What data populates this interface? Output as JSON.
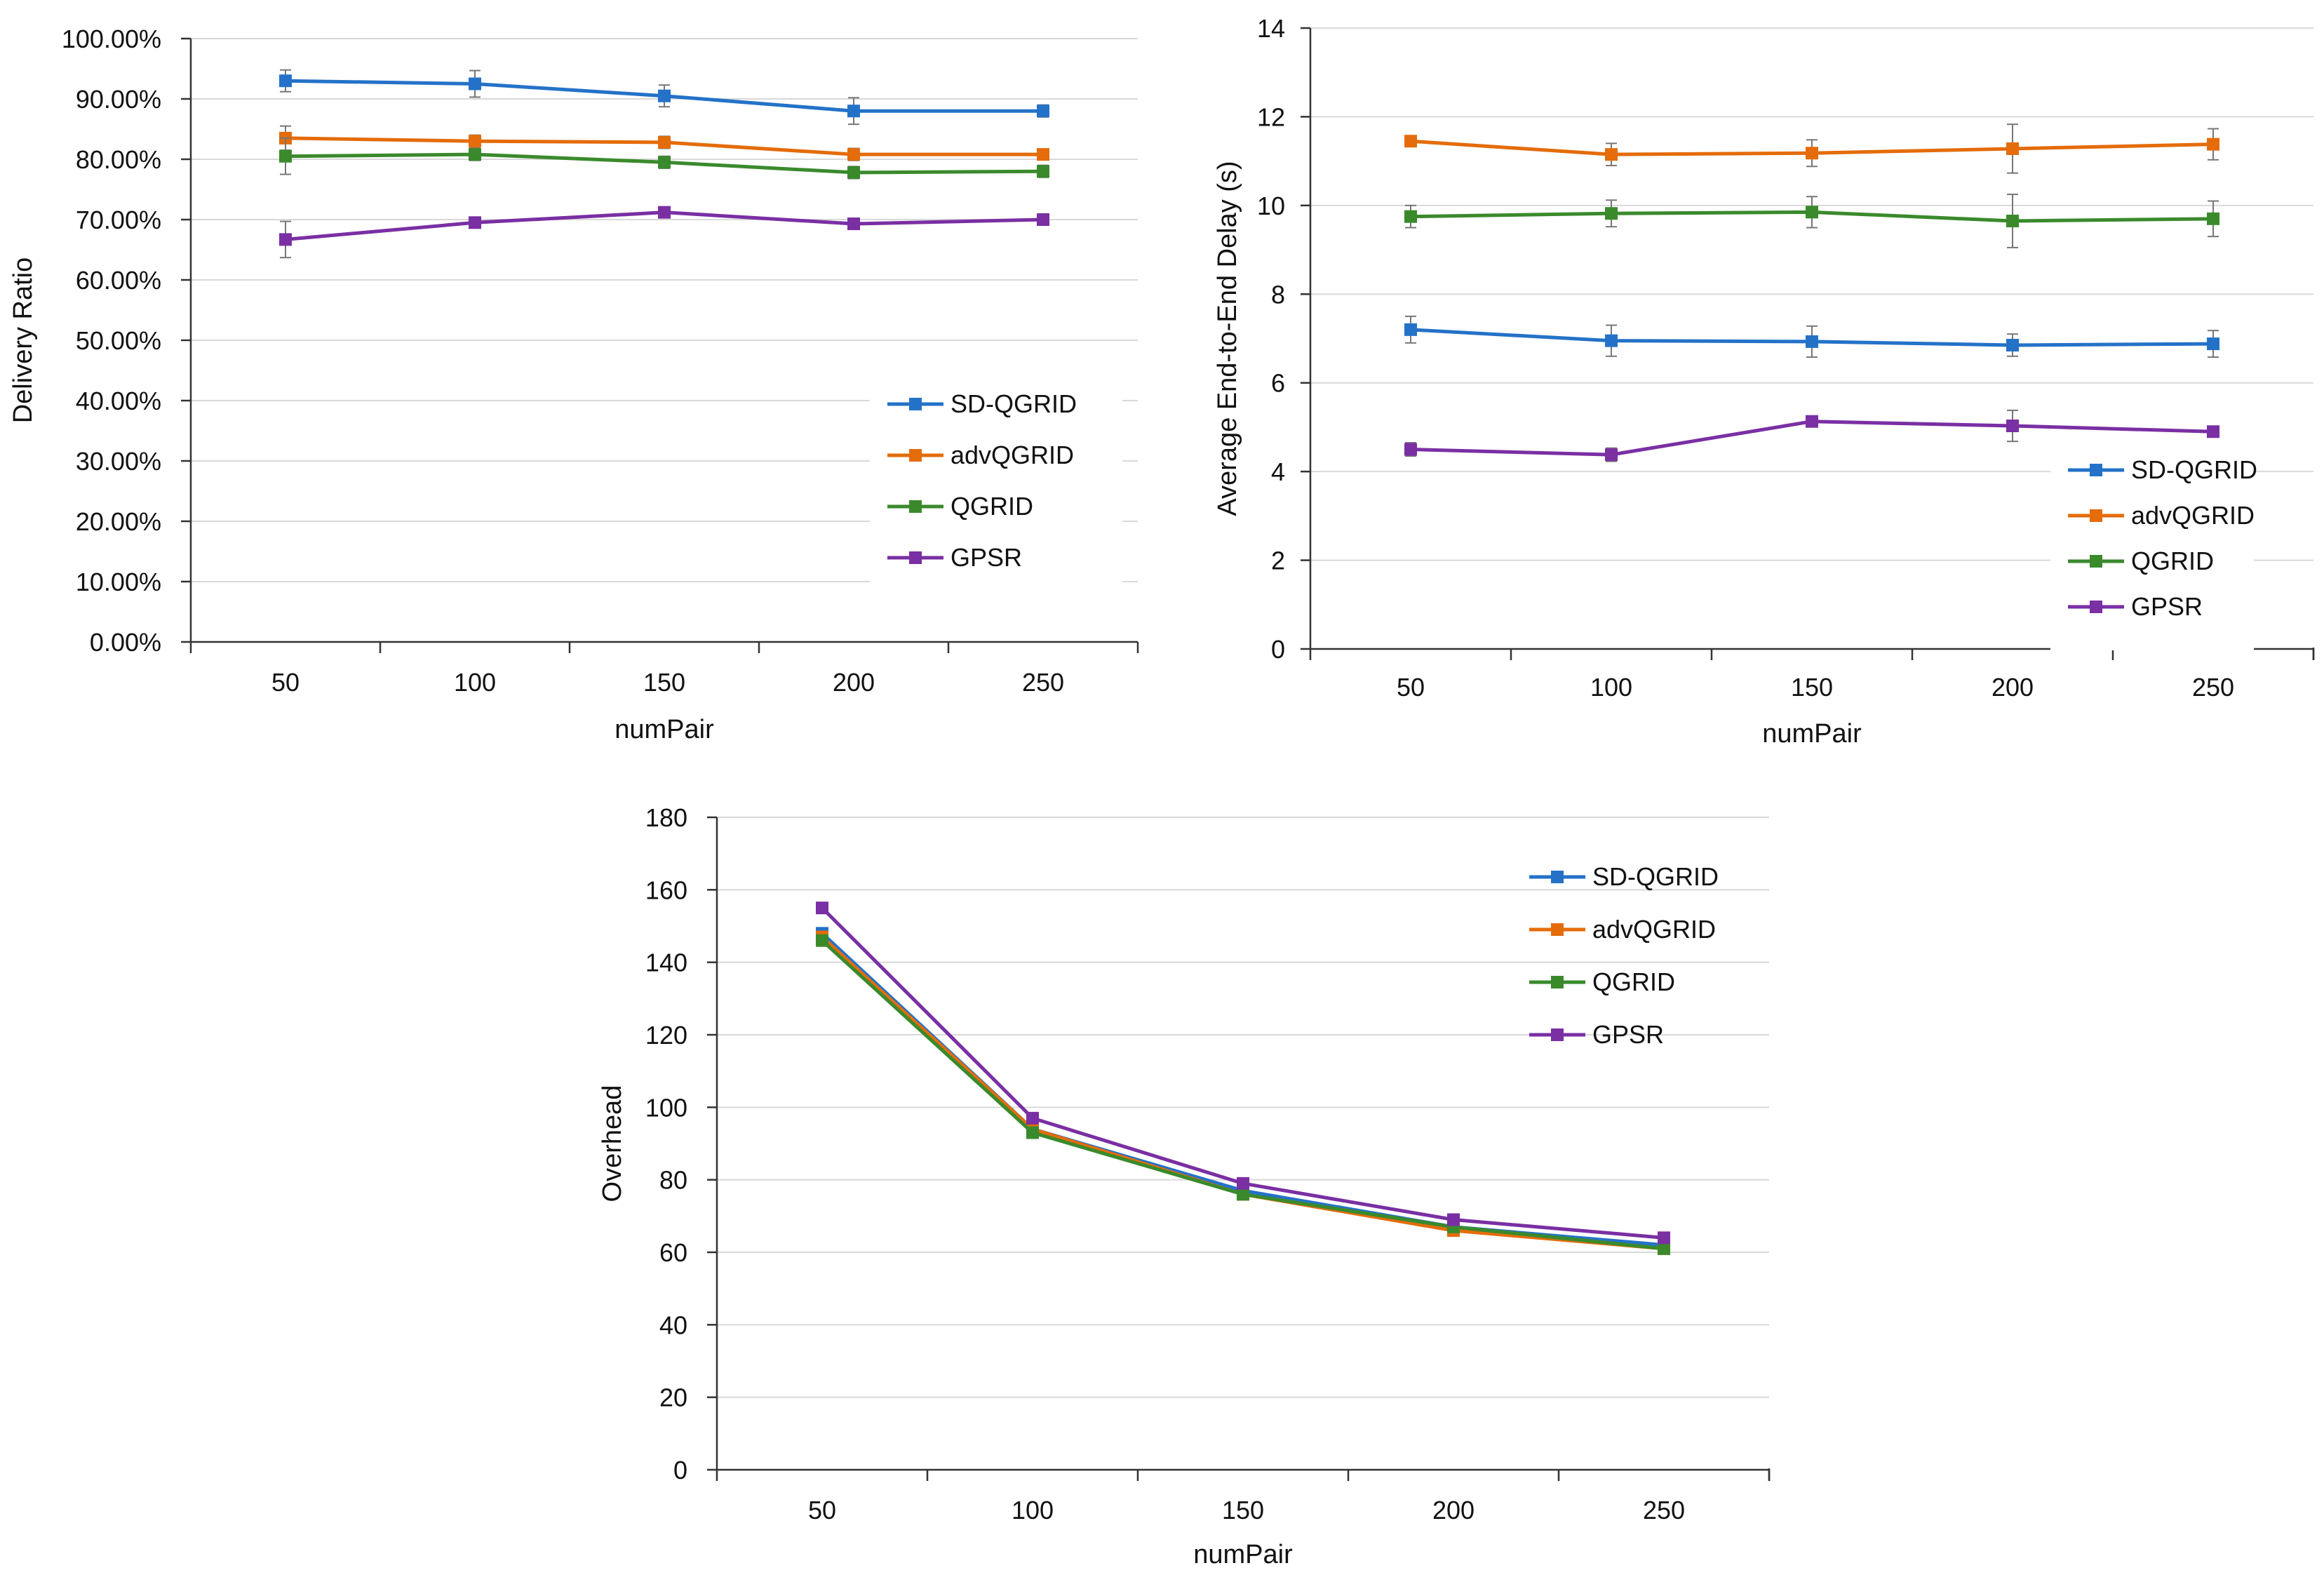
{
  "chart_data": [
    {
      "type": "line",
      "title": "",
      "xlabel": "numPair",
      "ylabel": "Delivery Ratio",
      "categories": [
        "50",
        "100",
        "150",
        "200",
        "250"
      ],
      "ylim": [
        0,
        1
      ],
      "yticks": [
        0,
        0.1,
        0.2,
        0.3,
        0.4,
        0.5,
        0.6,
        0.7,
        0.8,
        0.9,
        1.0
      ],
      "ytick_labels": [
        "0.00%",
        "10.00%",
        "20.00%",
        "30.00%",
        "40.00%",
        "50.00%",
        "60.00%",
        "70.00%",
        "80.00%",
        "90.00%",
        "100.00%"
      ],
      "grid": true,
      "legend_position": "bottom-right",
      "series": [
        {
          "name": "SD-QGRID",
          "color": "#2472C8",
          "values": [
            0.93,
            0.925,
            0.905,
            0.88,
            0.88
          ],
          "errors": [
            0.018,
            0.022,
            0.018,
            0.022,
            0.01
          ]
        },
        {
          "name": "advQGRID",
          "color": "#E46C0A",
          "values": [
            0.835,
            0.83,
            0.828,
            0.808,
            0.808
          ],
          "errors": [
            0.02,
            0.01,
            0.01,
            0.01,
            0.008
          ]
        },
        {
          "name": "QGRID",
          "color": "#3A8A2C",
          "values": [
            0.805,
            0.808,
            0.795,
            0.778,
            0.78
          ],
          "errors": [
            0.03,
            0.01,
            0.01,
            0.01,
            0.01
          ]
        },
        {
          "name": "GPSR",
          "color": "#7A2FA3",
          "values": [
            0.667,
            0.695,
            0.712,
            0.693,
            0.7
          ],
          "errors": [
            0.03,
            0.008,
            0.008,
            0.008,
            0.008
          ]
        }
      ]
    },
    {
      "type": "line",
      "title": "",
      "xlabel": "numPair",
      "ylabel": "Average End-to-End Delay (s)",
      "categories": [
        "50",
        "100",
        "150",
        "200",
        "250"
      ],
      "ylim": [
        0,
        14
      ],
      "yticks": [
        0,
        2,
        4,
        6,
        8,
        10,
        12,
        14
      ],
      "ytick_labels": [
        "0",
        "2",
        "4",
        "6",
        "8",
        "10",
        "12",
        "14"
      ],
      "grid": true,
      "legend_position": "bottom-right",
      "series": [
        {
          "name": "SD-QGRID",
          "color": "#2472C8",
          "values": [
            7.2,
            6.95,
            6.93,
            6.85,
            6.88
          ],
          "errors": [
            0.3,
            0.35,
            0.35,
            0.25,
            0.3
          ]
        },
        {
          "name": "advQGRID",
          "color": "#E46C0A",
          "values": [
            11.45,
            11.15,
            11.18,
            11.28,
            11.38
          ],
          "errors": [
            0.08,
            0.25,
            0.3,
            0.55,
            0.35
          ]
        },
        {
          "name": "QGRID",
          "color": "#3A8A2C",
          "values": [
            9.75,
            9.82,
            9.85,
            9.65,
            9.7
          ],
          "errors": [
            0.25,
            0.3,
            0.35,
            0.6,
            0.4
          ]
        },
        {
          "name": "GPSR",
          "color": "#7A2FA3",
          "values": [
            4.5,
            4.38,
            5.13,
            5.03,
            4.9
          ],
          "errors": [
            0.15,
            0.15,
            0.08,
            0.35,
            0.08
          ]
        }
      ]
    },
    {
      "type": "line",
      "title": "",
      "xlabel": "numPair",
      "ylabel": "Overhead",
      "categories": [
        "50",
        "100",
        "150",
        "200",
        "250"
      ],
      "ylim": [
        0,
        180
      ],
      "yticks": [
        0,
        20,
        40,
        60,
        80,
        100,
        120,
        140,
        160,
        180
      ],
      "ytick_labels": [
        "0",
        "20",
        "40",
        "60",
        "80",
        "100",
        "120",
        "140",
        "160",
        "180"
      ],
      "grid": true,
      "legend_position": "top-right",
      "series": [
        {
          "name": "SD-QGRID",
          "color": "#2472C8",
          "values": [
            148,
            94,
            77,
            67,
            62
          ]
        },
        {
          "name": "advQGRID",
          "color": "#E46C0A",
          "values": [
            147,
            94,
            76,
            66,
            61
          ]
        },
        {
          "name": "QGRID",
          "color": "#3A8A2C",
          "values": [
            146,
            93,
            76,
            67,
            61
          ]
        },
        {
          "name": "GPSR",
          "color": "#7A2FA3",
          "values": [
            155,
            97,
            79,
            69,
            64
          ]
        }
      ]
    }
  ]
}
